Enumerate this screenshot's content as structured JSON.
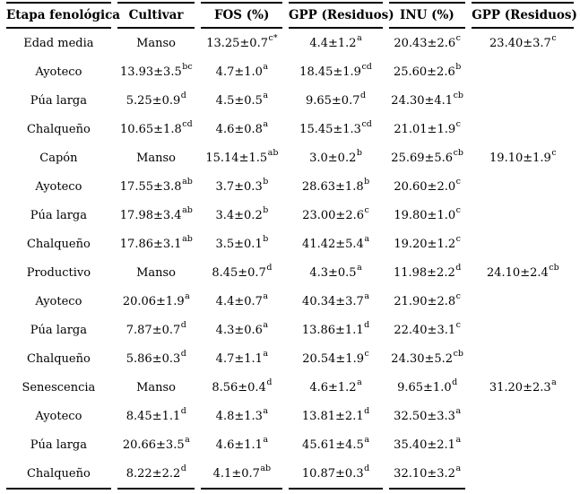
{
  "colors": {
    "background": "#ffffff",
    "text": "#000000",
    "rule": "#000000"
  },
  "table": {
    "headers": [
      "Etapa fenológica",
      "Cultivar",
      "FOS (%)",
      "GPP (Residuos)",
      "INU (%)",
      "GPP (Residuos)"
    ],
    "rows": [
      {
        "cells": [
          {
            "text": "Edad media",
            "sup": ""
          },
          {
            "text": "Manso",
            "sup": ""
          },
          {
            "text": "13.25±0.7",
            "sup": "c*"
          },
          {
            "text": "4.4±1.2",
            "sup": "a"
          },
          {
            "text": "20.43±2.6",
            "sup": "c"
          },
          {
            "text": "23.40±3.7",
            "sup": "c"
          }
        ]
      },
      {
        "cells": [
          {
            "text": "Ayoteco",
            "sup": ""
          },
          {
            "text": "13.93±3.5",
            "sup": "bc"
          },
          {
            "text": "4.7±1.0",
            "sup": "a"
          },
          {
            "text": "18.45±1.9",
            "sup": "cd"
          },
          {
            "text": "25.60±2.6",
            "sup": "b"
          },
          {
            "text": "",
            "sup": ""
          }
        ]
      },
      {
        "cells": [
          {
            "text": "Púa larga",
            "sup": ""
          },
          {
            "text": "5.25±0.9",
            "sup": "d"
          },
          {
            "text": "4.5±0.5",
            "sup": "a"
          },
          {
            "text": "9.65±0.7",
            "sup": "d"
          },
          {
            "text": "24.30±4.1",
            "sup": "cb"
          },
          {
            "text": "",
            "sup": ""
          }
        ]
      },
      {
        "cells": [
          {
            "text": "Chalqueño",
            "sup": ""
          },
          {
            "text": "10.65±1.8",
            "sup": "cd"
          },
          {
            "text": "4.6±0.8",
            "sup": "a"
          },
          {
            "text": "15.45±1.3",
            "sup": "cd"
          },
          {
            "text": "21.01±1.9",
            "sup": "c"
          },
          {
            "text": "",
            "sup": ""
          }
        ]
      },
      {
        "cells": [
          {
            "text": "Capón",
            "sup": ""
          },
          {
            "text": "Manso",
            "sup": ""
          },
          {
            "text": "15.14±1.5",
            "sup": "ab"
          },
          {
            "text": "3.0±0.2",
            "sup": "b"
          },
          {
            "text": "25.69±5.6",
            "sup": "cb"
          },
          {
            "text": "19.10±1.9",
            "sup": "c"
          }
        ]
      },
      {
        "cells": [
          {
            "text": "Ayoteco",
            "sup": ""
          },
          {
            "text": "17.55±3.8",
            "sup": "ab"
          },
          {
            "text": "3.7±0.3",
            "sup": "b"
          },
          {
            "text": "28.63±1.8",
            "sup": "b"
          },
          {
            "text": "20.60±2.0",
            "sup": "c"
          },
          {
            "text": "",
            "sup": ""
          }
        ]
      },
      {
        "cells": [
          {
            "text": "Púa larga",
            "sup": ""
          },
          {
            "text": "17.98±3.4",
            "sup": "ab"
          },
          {
            "text": "3.4±0.2",
            "sup": "b"
          },
          {
            "text": "23.00±2.6",
            "sup": "c"
          },
          {
            "text": "19.80±1.0",
            "sup": "c"
          },
          {
            "text": "",
            "sup": ""
          }
        ]
      },
      {
        "cells": [
          {
            "text": "Chalqueño",
            "sup": ""
          },
          {
            "text": "17.86±3.1",
            "sup": "ab"
          },
          {
            "text": "3.5±0.1",
            "sup": "b"
          },
          {
            "text": "41.42±5.4",
            "sup": "a"
          },
          {
            "text": "19.20±1.2",
            "sup": "c"
          },
          {
            "text": "",
            "sup": ""
          }
        ]
      },
      {
        "cells": [
          {
            "text": "Productivo",
            "sup": ""
          },
          {
            "text": "Manso",
            "sup": ""
          },
          {
            "text": "8.45±0.7",
            "sup": "d"
          },
          {
            "text": "4.3±0.5",
            "sup": "a"
          },
          {
            "text": "11.98±2.2",
            "sup": "d"
          },
          {
            "text": "24.10±2.4",
            "sup": "cb"
          }
        ]
      },
      {
        "cells": [
          {
            "text": "Ayoteco",
            "sup": ""
          },
          {
            "text": "20.06±1.9",
            "sup": "a"
          },
          {
            "text": "4.4±0.7",
            "sup": "a"
          },
          {
            "text": "40.34±3.7",
            "sup": "a"
          },
          {
            "text": "21.90±2.8",
            "sup": "c"
          },
          {
            "text": "",
            "sup": ""
          }
        ]
      },
      {
        "cells": [
          {
            "text": "Púa larga",
            "sup": ""
          },
          {
            "text": "7.87±0.7",
            "sup": "d"
          },
          {
            "text": "4.3±0.6",
            "sup": "a"
          },
          {
            "text": "13.86±1.1",
            "sup": "d"
          },
          {
            "text": "22.40±3.1",
            "sup": "c"
          },
          {
            "text": "",
            "sup": ""
          }
        ]
      },
      {
        "cells": [
          {
            "text": "Chalqueño",
            "sup": ""
          },
          {
            "text": "5.86±0.3",
            "sup": "d"
          },
          {
            "text": "4.7±1.1",
            "sup": "a"
          },
          {
            "text": "20.54±1.9",
            "sup": "c"
          },
          {
            "text": "24.30±5.2",
            "sup": "cb"
          },
          {
            "text": "",
            "sup": ""
          }
        ]
      },
      {
        "cells": [
          {
            "text": "Senescencia",
            "sup": ""
          },
          {
            "text": "Manso",
            "sup": ""
          },
          {
            "text": "8.56±0.4",
            "sup": "d"
          },
          {
            "text": "4.6±1.2",
            "sup": "a"
          },
          {
            "text": "9.65±1.0",
            "sup": "d"
          },
          {
            "text": "31.20±2.3",
            "sup": "a"
          }
        ]
      },
      {
        "cells": [
          {
            "text": "Ayoteco",
            "sup": ""
          },
          {
            "text": "8.45±1.1",
            "sup": "d"
          },
          {
            "text": "4.8±1.3",
            "sup": "a"
          },
          {
            "text": "13.81±2.1",
            "sup": "d"
          },
          {
            "text": "32.50±3.3",
            "sup": "a"
          },
          {
            "text": "",
            "sup": ""
          }
        ]
      },
      {
        "cells": [
          {
            "text": "Púa larga",
            "sup": ""
          },
          {
            "text": "20.66±3.5",
            "sup": "a"
          },
          {
            "text": "4.6±1.1",
            "sup": "a"
          },
          {
            "text": "45.61±4.5",
            "sup": "a"
          },
          {
            "text": "35.40±2.1",
            "sup": "a"
          },
          {
            "text": "",
            "sup": ""
          }
        ]
      },
      {
        "cells": [
          {
            "text": "Chalqueño",
            "sup": ""
          },
          {
            "text": "8.22±2.2",
            "sup": "d"
          },
          {
            "text": "4.1±0.7",
            "sup": "ab"
          },
          {
            "text": "10.87±0.3",
            "sup": "d"
          },
          {
            "text": "32.10±3.2",
            "sup": "a"
          },
          {
            "text": "",
            "sup": ""
          }
        ]
      }
    ]
  }
}
